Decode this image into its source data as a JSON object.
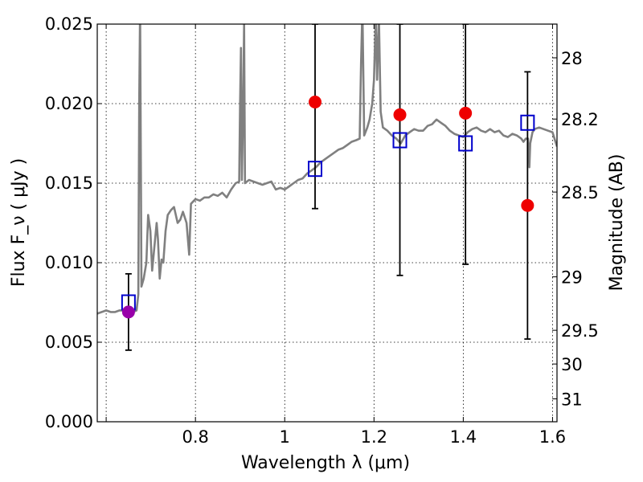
{
  "chart_data": {
    "type": "scatter",
    "xlabel": "Wavelength  λ (μm)",
    "ylabel": "Flux  F_ν  ( μJy )",
    "ylabel_right": "Magnitude (AB)",
    "xlim": [
      0.58,
      1.61
    ],
    "ylim": [
      0.0,
      0.025
    ],
    "grid": true,
    "x_ticks": [
      {
        "value": 0.6,
        "label": ""
      },
      {
        "value": 0.8,
        "label": "0.8"
      },
      {
        "value": 1.0,
        "label": "1"
      },
      {
        "value": 1.2,
        "label": "1.2"
      },
      {
        "value": 1.4,
        "label": "1.4"
      },
      {
        "value": 1.6,
        "label": "1.6"
      }
    ],
    "y_ticks": [
      {
        "value": 0.0,
        "label": "0.000"
      },
      {
        "value": 0.005,
        "label": "0.005"
      },
      {
        "value": 0.01,
        "label": "0.010"
      },
      {
        "value": 0.015,
        "label": "0.015"
      },
      {
        "value": 0.02,
        "label": "0.020"
      },
      {
        "value": 0.025,
        "label": "0.025"
      }
    ],
    "right_ticks": [
      {
        "label": "28",
        "flux": 0.02288
      },
      {
        "label": "28.2",
        "flux": 0.01903
      },
      {
        "label": "28.5",
        "flux": 0.01444
      },
      {
        "label": "29",
        "flux": 0.00911
      },
      {
        "label": "29.5",
        "flux": 0.00575
      },
      {
        "label": "30",
        "flux": 0.00363
      },
      {
        "label": "31",
        "flux": 0.00144
      }
    ],
    "series": [
      {
        "kind": "line",
        "color": "#808080",
        "points": [
          [
            0.58,
            0.0068
          ],
          [
            0.59,
            0.0069
          ],
          [
            0.6,
            0.007
          ],
          [
            0.61,
            0.0069
          ],
          [
            0.62,
            0.0069
          ],
          [
            0.63,
            0.007
          ],
          [
            0.645,
            0.007
          ],
          [
            0.66,
            0.0069
          ],
          [
            0.668,
            0.007
          ],
          [
            0.672,
            0.008
          ],
          [
            0.674,
            0.02
          ],
          [
            0.676,
            0.026
          ],
          [
            0.679,
            0.0085
          ],
          [
            0.684,
            0.009
          ],
          [
            0.69,
            0.01
          ],
          [
            0.694,
            0.013
          ],
          [
            0.699,
            0.012
          ],
          [
            0.703,
            0.0095
          ],
          [
            0.708,
            0.011
          ],
          [
            0.713,
            0.0125
          ],
          [
            0.716,
            0.0115
          ],
          [
            0.72,
            0.009
          ],
          [
            0.724,
            0.0102
          ],
          [
            0.728,
            0.01
          ],
          [
            0.733,
            0.012
          ],
          [
            0.738,
            0.013
          ],
          [
            0.745,
            0.0133
          ],
          [
            0.752,
            0.0135
          ],
          [
            0.76,
            0.0125
          ],
          [
            0.766,
            0.0127
          ],
          [
            0.772,
            0.0132
          ],
          [
            0.78,
            0.0125
          ],
          [
            0.786,
            0.0105
          ],
          [
            0.79,
            0.0137
          ],
          [
            0.8,
            0.014
          ],
          [
            0.81,
            0.0139
          ],
          [
            0.82,
            0.0141
          ],
          [
            0.83,
            0.0141
          ],
          [
            0.84,
            0.0143
          ],
          [
            0.85,
            0.0142
          ],
          [
            0.86,
            0.0144
          ],
          [
            0.87,
            0.0141
          ],
          [
            0.88,
            0.0146
          ],
          [
            0.89,
            0.015
          ],
          [
            0.898,
            0.0151
          ],
          [
            0.9,
            0.02
          ],
          [
            0.902,
            0.0235
          ],
          [
            0.904,
            0.0152
          ],
          [
            0.907,
            0.02
          ],
          [
            0.909,
            0.025
          ],
          [
            0.911,
            0.015
          ],
          [
            0.92,
            0.0152
          ],
          [
            0.93,
            0.0151
          ],
          [
            0.94,
            0.015
          ],
          [
            0.95,
            0.0149
          ],
          [
            0.96,
            0.015
          ],
          [
            0.97,
            0.0151
          ],
          [
            0.98,
            0.0146
          ],
          [
            0.99,
            0.0147
          ],
          [
            1.0,
            0.0146
          ],
          [
            1.01,
            0.0148
          ],
          [
            1.02,
            0.015
          ],
          [
            1.03,
            0.0152
          ],
          [
            1.04,
            0.0153
          ],
          [
            1.05,
            0.0156
          ],
          [
            1.06,
            0.0158
          ],
          [
            1.07,
            0.016
          ],
          [
            1.08,
            0.0163
          ],
          [
            1.09,
            0.0165
          ],
          [
            1.1,
            0.0167
          ],
          [
            1.11,
            0.0169
          ],
          [
            1.12,
            0.0171
          ],
          [
            1.13,
            0.0172
          ],
          [
            1.14,
            0.0174
          ],
          [
            1.15,
            0.0176
          ],
          [
            1.16,
            0.0177
          ],
          [
            1.168,
            0.0178
          ],
          [
            1.171,
            0.0225
          ],
          [
            1.174,
            0.026
          ],
          [
            1.178,
            0.018
          ],
          [
            1.185,
            0.0185
          ],
          [
            1.19,
            0.019
          ],
          [
            1.196,
            0.02
          ],
          [
            1.2,
            0.0215
          ],
          [
            1.204,
            0.0255
          ],
          [
            1.207,
            0.0215
          ],
          [
            1.211,
            0.0255
          ],
          [
            1.215,
            0.0195
          ],
          [
            1.22,
            0.0185
          ],
          [
            1.23,
            0.0183
          ],
          [
            1.24,
            0.018
          ],
          [
            1.25,
            0.0178
          ],
          [
            1.26,
            0.0175
          ],
          [
            1.27,
            0.018
          ],
          [
            1.28,
            0.0182
          ],
          [
            1.29,
            0.0184
          ],
          [
            1.3,
            0.0183
          ],
          [
            1.31,
            0.0183
          ],
          [
            1.32,
            0.0186
          ],
          [
            1.33,
            0.0187
          ],
          [
            1.34,
            0.019
          ],
          [
            1.35,
            0.0188
          ],
          [
            1.36,
            0.0186
          ],
          [
            1.37,
            0.0183
          ],
          [
            1.38,
            0.0181
          ],
          [
            1.39,
            0.018
          ],
          [
            1.4,
            0.0179
          ],
          [
            1.41,
            0.0182
          ],
          [
            1.42,
            0.0184
          ],
          [
            1.43,
            0.0185
          ],
          [
            1.44,
            0.0183
          ],
          [
            1.45,
            0.0182
          ],
          [
            1.46,
            0.0184
          ],
          [
            1.47,
            0.0182
          ],
          [
            1.48,
            0.0183
          ],
          [
            1.49,
            0.018
          ],
          [
            1.5,
            0.0179
          ],
          [
            1.51,
            0.0181
          ],
          [
            1.52,
            0.018
          ],
          [
            1.53,
            0.0178
          ],
          [
            1.535,
            0.0176
          ],
          [
            1.54,
            0.0178
          ],
          [
            1.545,
            0.0178
          ],
          [
            1.548,
            0.016
          ],
          [
            1.55,
            0.0175
          ],
          [
            1.555,
            0.0182
          ],
          [
            1.56,
            0.0184
          ],
          [
            1.57,
            0.0185
          ],
          [
            1.58,
            0.0184
          ],
          [
            1.59,
            0.0183
          ],
          [
            1.6,
            0.0182
          ],
          [
            1.61,
            0.0173
          ]
        ]
      },
      {
        "kind": "errorbars",
        "color": "#000000",
        "points": [
          {
            "x": 0.65,
            "low": 0.0045,
            "high": 0.0093
          },
          {
            "x": 1.068,
            "low": 0.0134,
            "high": 0.025
          },
          {
            "x": 1.258,
            "low": 0.0092,
            "high": 0.025
          },
          {
            "x": 1.405,
            "low": 0.0099,
            "high": 0.025
          },
          {
            "x": 1.544,
            "low": 0.0052,
            "high": 0.022
          }
        ]
      },
      {
        "kind": "square",
        "color": "#0000cc",
        "points": [
          [
            0.65,
            0.0075
          ],
          [
            1.068,
            0.0159
          ],
          [
            1.258,
            0.0177
          ],
          [
            1.405,
            0.0175
          ],
          [
            1.544,
            0.0188
          ]
        ]
      },
      {
        "kind": "circle",
        "color": "#ee0000",
        "points": [
          [
            1.068,
            0.0201
          ],
          [
            1.258,
            0.0193
          ],
          [
            1.405,
            0.0194
          ],
          [
            1.544,
            0.0136
          ]
        ]
      },
      {
        "kind": "circle",
        "color": "#9900aa",
        "points": [
          [
            0.65,
            0.0069
          ]
        ]
      }
    ]
  }
}
